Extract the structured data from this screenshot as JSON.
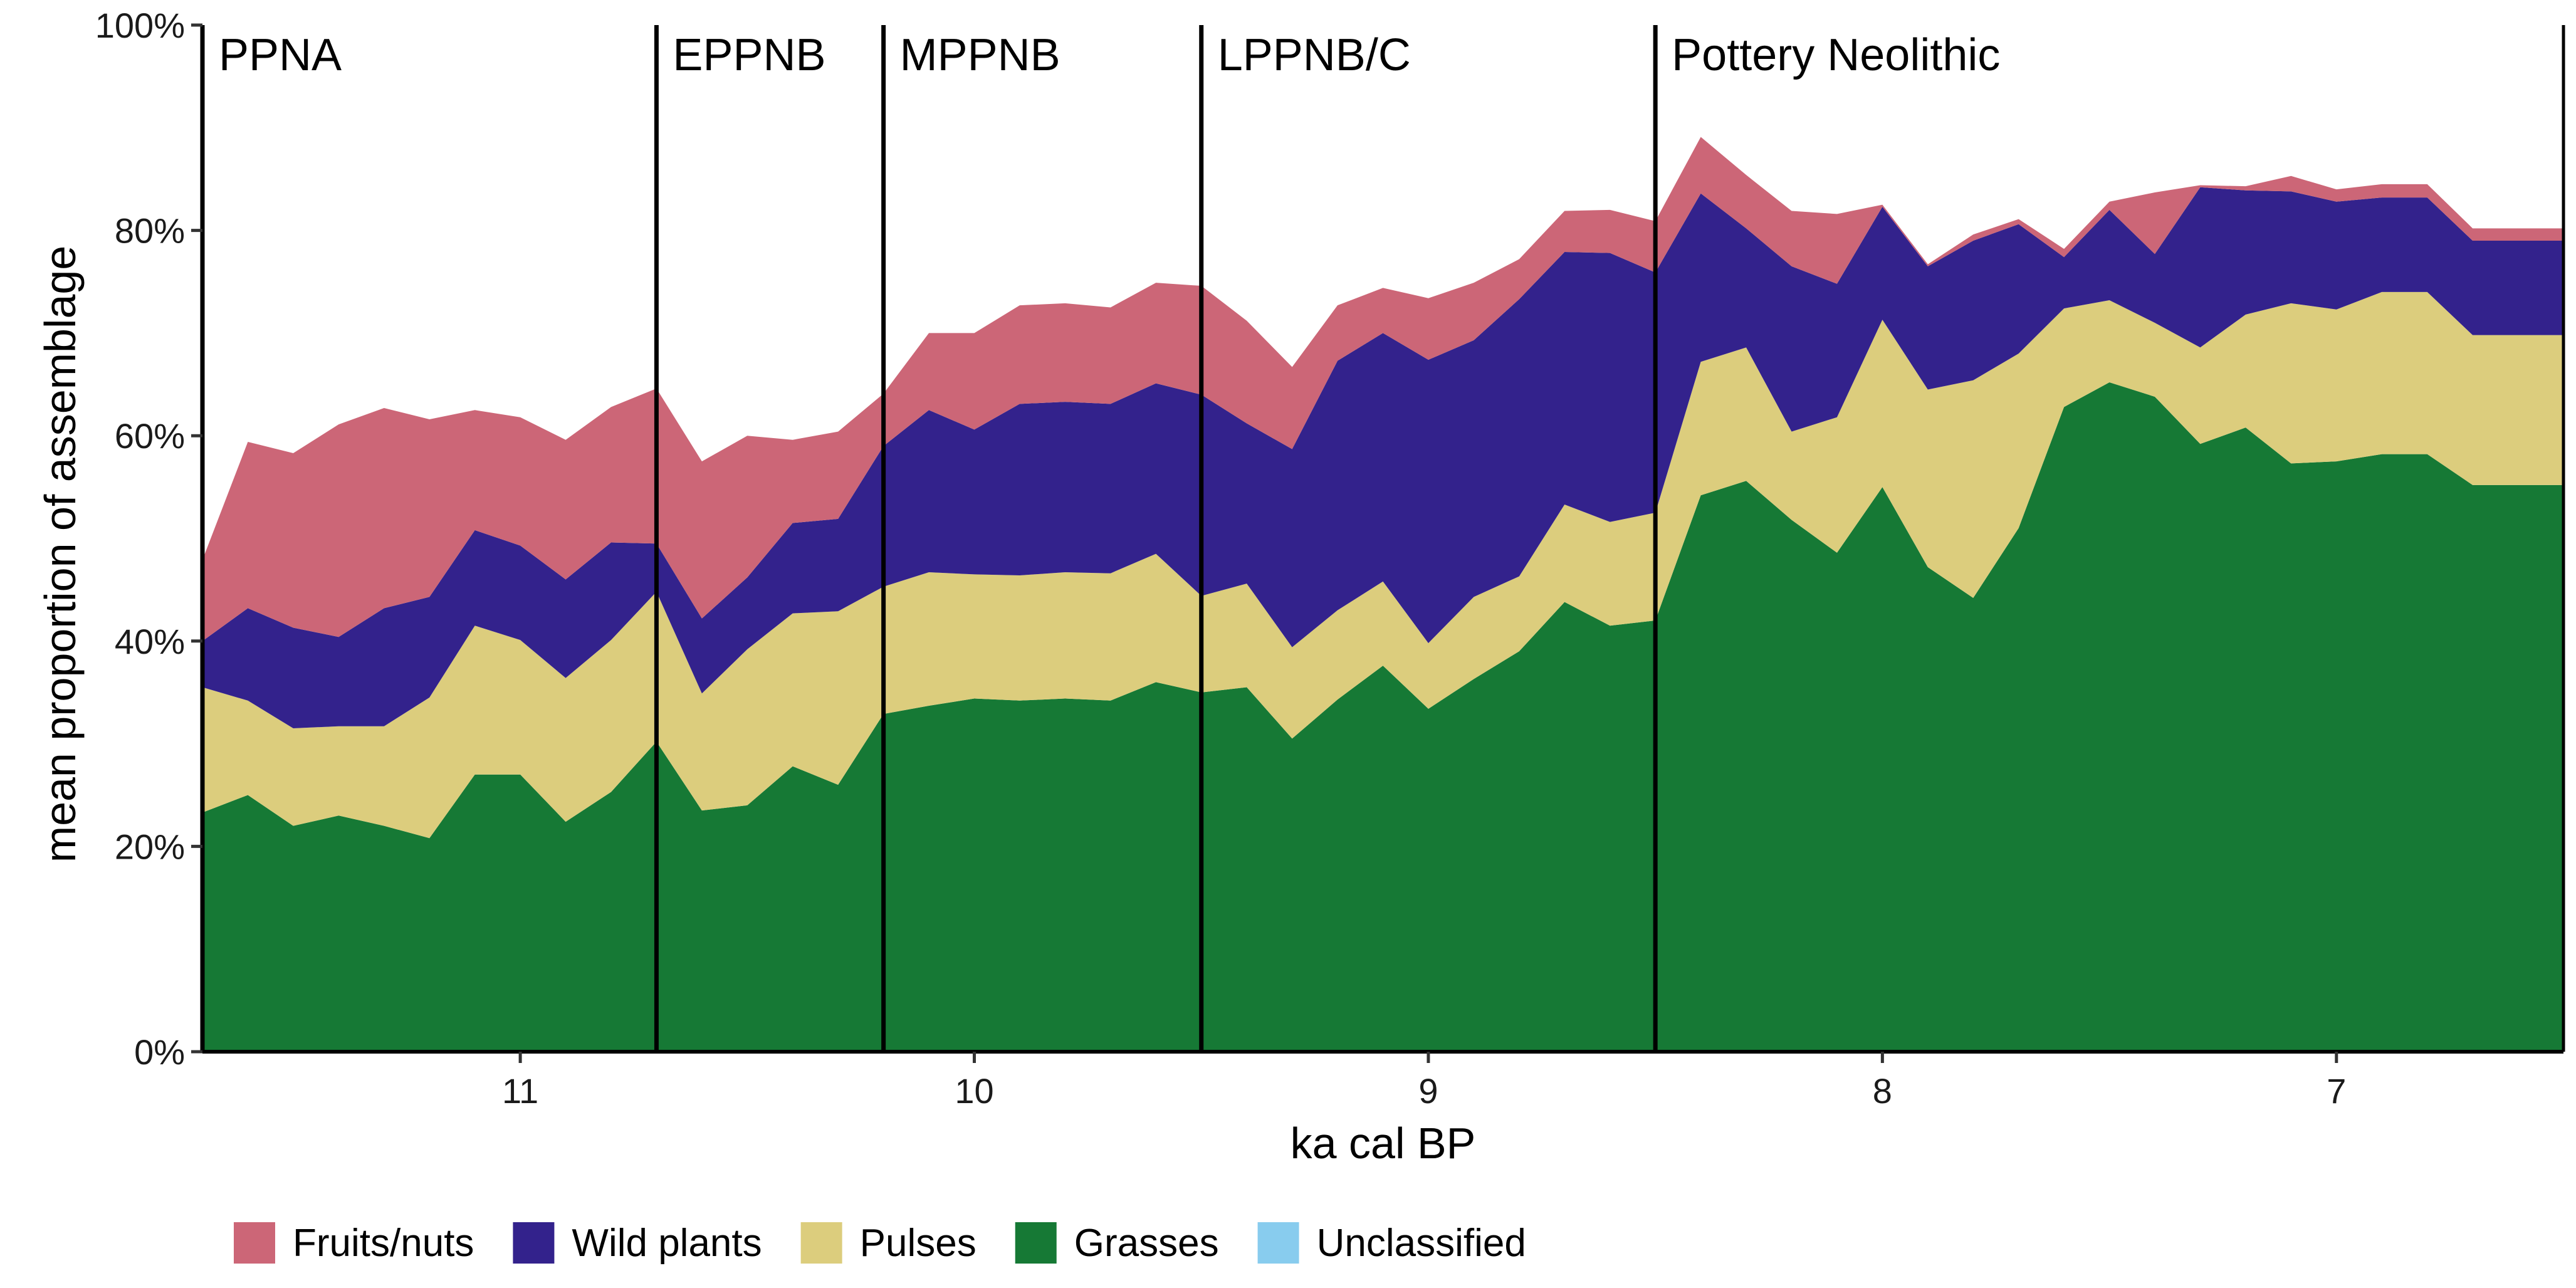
{
  "chart_data": {
    "type": "area",
    "stacked": true,
    "xlabel": "ka cal BP",
    "ylabel": "mean proportion of assemblage",
    "x_reversed": true,
    "xlim": [
      11.7,
      6.5
    ],
    "ylim": [
      0,
      100
    ],
    "x_ticks": [
      11,
      10,
      9,
      8,
      7
    ],
    "y_ticks": [
      0,
      20,
      40,
      60,
      80,
      100
    ],
    "y_tick_labels": [
      "0%",
      "20%",
      "40%",
      "60%",
      "80%",
      "100%"
    ],
    "legend_position": "bottom",
    "periods": [
      {
        "label": "PPNA",
        "start": 11.7
      },
      {
        "label": "EPPNB",
        "start": 10.7
      },
      {
        "label": "MPPNB",
        "start": 10.2
      },
      {
        "label": "LPPNB/C",
        "start": 9.5
      },
      {
        "label": "Pottery Neolithic",
        "start": 8.5
      }
    ],
    "x": [
      11.7,
      11.6,
      11.5,
      11.4,
      11.3,
      11.2,
      11.1,
      11.0,
      10.9,
      10.8,
      10.7,
      10.6,
      10.5,
      10.4,
      10.3,
      10.2,
      10.1,
      10.0,
      9.9,
      9.8,
      9.7,
      9.6,
      9.5,
      9.4,
      9.3,
      9.2,
      9.1,
      9.0,
      8.9,
      8.8,
      8.7,
      8.6,
      8.5,
      8.4,
      8.3,
      8.2,
      8.1,
      8.0,
      7.9,
      7.8,
      7.7,
      7.6,
      7.5,
      7.4,
      7.3,
      7.2,
      7.1,
      7.0,
      6.9,
      6.8,
      6.7,
      6.6,
      6.5
    ],
    "series": [
      {
        "name": "Grasses",
        "color": "#167935",
        "values": [
          23.3,
          25.0,
          22.0,
          23.0,
          22.0,
          20.8,
          27.0,
          27.0,
          22.4,
          25.3,
          30.2,
          23.5,
          24.0,
          27.8,
          26.0,
          32.9,
          33.7,
          34.4,
          34.2,
          34.4,
          34.2,
          36.0,
          35.0,
          35.5,
          30.5,
          34.3,
          37.6,
          33.4,
          36.3,
          39.0,
          43.8,
          41.5,
          42.0,
          54.2,
          55.6,
          51.8,
          48.6,
          55.0,
          47.2,
          44.2,
          51.0,
          62.8,
          65.2,
          63.8,
          59.2,
          60.8,
          57.3,
          57.5,
          58.2,
          58.2,
          55.2,
          55.2,
          55.2
        ]
      },
      {
        "name": "Pulses",
        "color": "#dccd7d",
        "values": [
          12.2,
          9.2,
          9.5,
          8.7,
          9.7,
          13.7,
          14.5,
          13.1,
          14.0,
          14.8,
          14.6,
          11.4,
          15.2,
          14.9,
          16.9,
          12.4,
          13.0,
          12.1,
          12.2,
          12.3,
          12.4,
          12.5,
          9.4,
          10.1,
          8.9,
          8.7,
          8.2,
          6.4,
          8.0,
          7.3,
          9.5,
          10.1,
          10.5,
          13.0,
          13.0,
          8.6,
          13.2,
          16.3,
          17.3,
          21.2,
          17.0,
          9.6,
          8.0,
          7.2,
          9.4,
          11.0,
          15.6,
          14.8,
          15.8,
          15.8,
          14.6,
          14.6,
          14.6
        ]
      },
      {
        "name": "Wild plants",
        "color": "#33228c",
        "values": [
          4.5,
          9.0,
          9.8,
          8.7,
          11.5,
          9.8,
          9.3,
          9.2,
          9.6,
          9.5,
          4.7,
          7.3,
          7.0,
          8.8,
          9.0,
          13.7,
          15.8,
          14.1,
          16.7,
          16.6,
          16.5,
          16.6,
          19.6,
          15.6,
          19.3,
          24.3,
          24.2,
          27.6,
          25.0,
          27.0,
          24.6,
          26.2,
          23.4,
          16.4,
          11.6,
          16.1,
          13.0,
          11.0,
          12.0,
          13.6,
          12.6,
          5.0,
          8.8,
          6.7,
          15.6,
          12.1,
          10.9,
          10.5,
          9.2,
          9.2,
          9.2,
          9.2,
          9.2
        ]
      },
      {
        "name": "Fruits/nuts",
        "color": "#cc6677",
        "values": [
          7.9,
          16.2,
          17.0,
          20.7,
          19.5,
          17.3,
          11.7,
          12.5,
          13.6,
          13.2,
          15.1,
          15.3,
          13.8,
          8.1,
          8.5,
          5.1,
          7.5,
          9.4,
          9.6,
          9.6,
          9.4,
          9.8,
          10.6,
          10.0,
          8.0,
          5.4,
          4.4,
          6.0,
          5.6,
          3.9,
          4.0,
          4.2,
          5.0,
          5.5,
          5.2,
          5.4,
          6.8,
          0.2,
          0.2,
          0.6,
          0.5,
          0.8,
          0.8,
          6.0,
          0.2,
          0.4,
          1.5,
          1.2,
          1.3,
          1.3,
          1.2,
          1.2,
          1.2
        ]
      },
      {
        "name": "Unclassified",
        "color": "#88ccee",
        "values": [
          0,
          0,
          0,
          0,
          0,
          0,
          0,
          0,
          0,
          0,
          0,
          0,
          0,
          0,
          0,
          0,
          0,
          0,
          0,
          0,
          0,
          0,
          0,
          0,
          0,
          0,
          0,
          0,
          0,
          0,
          0,
          0,
          0,
          0,
          0,
          0,
          0,
          0,
          0,
          0,
          0,
          0,
          0,
          0,
          0,
          0,
          0,
          0,
          0,
          0,
          0,
          0,
          0
        ]
      }
    ],
    "legend": [
      {
        "label": "Fruits/nuts",
        "color": "#cc6677"
      },
      {
        "label": "Wild plants",
        "color": "#33228c"
      },
      {
        "label": "Pulses",
        "color": "#dccd7d"
      },
      {
        "label": "Grasses",
        "color": "#167935"
      },
      {
        "label": "Unclassified",
        "color": "#88ccee"
      }
    ]
  }
}
